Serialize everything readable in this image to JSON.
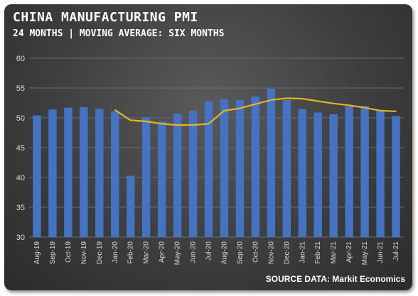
{
  "title": "CHINA MANUFACTURING PMI",
  "subtitle": "24 MONTHS | MOVING AVERAGE: SIX MONTHS",
  "source": "SOURCE DATA: Markit Economics",
  "colors": {
    "bar": "#4472c4",
    "line": "#e6b422",
    "grid": "#6a6a6a"
  },
  "chart_data": {
    "type": "bar",
    "categories": [
      "Aug-19",
      "Sep-19",
      "Oct-19",
      "Nov-19",
      "Dec-19",
      "Jan-20",
      "Feb-20",
      "Mar-20",
      "Apr-20",
      "May-20",
      "Jun-20",
      "Jul-20",
      "Aug-20",
      "Sep-20",
      "Oct-20",
      "Nov-20",
      "Dec-20",
      "Jan-21",
      "Feb-21",
      "Mar-21",
      "Apr-21",
      "May-21",
      "Jun-21",
      "Jul-21"
    ],
    "series": [
      {
        "type": "bar",
        "values": [
          50.4,
          51.4,
          51.7,
          51.8,
          51.5,
          51.1,
          40.3,
          50.1,
          49.4,
          50.7,
          51.2,
          52.8,
          53.1,
          53.0,
          53.6,
          54.9,
          53.0,
          51.5,
          50.9,
          50.6,
          51.9,
          52.0,
          51.3,
          50.3
        ]
      },
      {
        "type": "line",
        "values": [
          null,
          null,
          null,
          null,
          null,
          51.3,
          49.6,
          49.4,
          49.0,
          48.8,
          48.8,
          49.0,
          51.2,
          51.6,
          52.3,
          53.0,
          53.3,
          53.2,
          52.8,
          52.4,
          52.1,
          51.7,
          51.2,
          51.1
        ]
      }
    ],
    "ylim": [
      30,
      60
    ],
    "yticks": [
      30,
      35,
      40,
      45,
      50,
      55,
      60
    ],
    "grid": true
  }
}
